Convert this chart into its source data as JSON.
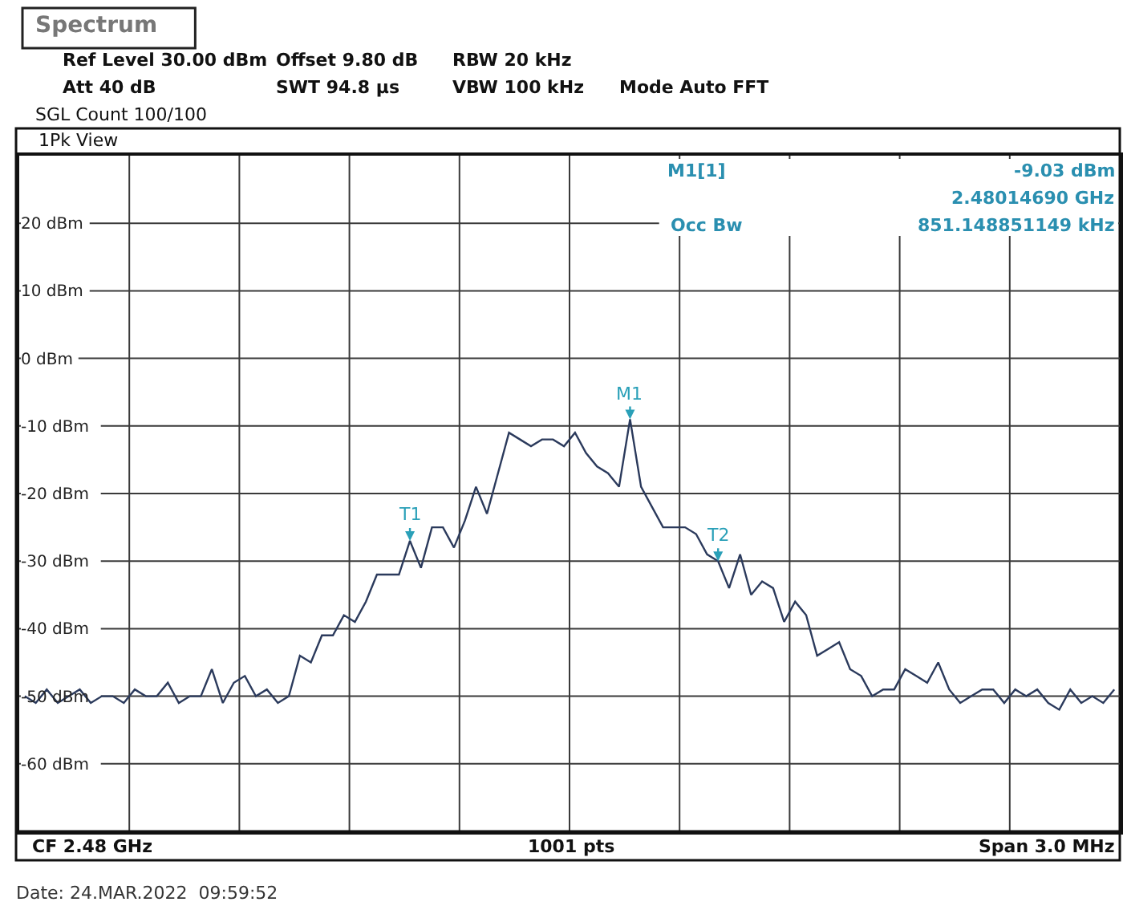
{
  "chart_data": {
    "type": "line",
    "title": "Spectrum",
    "categories": [
      null,
      null,
      null,
      null,
      null,
      null,
      null,
      null,
      null,
      null,
      null,
      null,
      null,
      null,
      null,
      null,
      null,
      null,
      null,
      null,
      null,
      null,
      null,
      null,
      null,
      null,
      null,
      null,
      null,
      null,
      null,
      null,
      null,
      null,
      null,
      null,
      null,
      null,
      null,
      null,
      null,
      null,
      null,
      null,
      null,
      null,
      null,
      null,
      null,
      null,
      null,
      null,
      null,
      null,
      null,
      null,
      null,
      null,
      null,
      null,
      null,
      null,
      null,
      null,
      null,
      null,
      null,
      null,
      null,
      null,
      null,
      null,
      null,
      null,
      null,
      null,
      null,
      null,
      null,
      null,
      null,
      null,
      null,
      null,
      null,
      null,
      null,
      null,
      null,
      null,
      null,
      null,
      null,
      null,
      null,
      null,
      null,
      null,
      null,
      null
    ],
    "series": [
      {
        "color": "#2b3a5c",
        "values": [
          -50,
          -51,
          -49,
          -51,
          -50,
          -49,
          -51,
          -50,
          -50,
          -51,
          -49,
          -50,
          -50,
          -48,
          -51,
          -50,
          -50,
          -46,
          -51,
          -48,
          -47,
          -50,
          -49,
          -51,
          -50,
          -44,
          -45,
          -41,
          -41,
          -38,
          -39,
          -36,
          -32,
          -32,
          -32,
          -27,
          -31,
          -25,
          -25,
          -28,
          -24,
          -19,
          -23,
          -17,
          -11,
          -12,
          -13,
          -12,
          -12,
          -13,
          -11,
          -14,
          -16,
          -17,
          -19,
          -9,
          -19,
          -22,
          -25,
          -25,
          -25,
          -26,
          -29,
          -30,
          -34,
          -29,
          -35,
          -33,
          -34,
          -39,
          -36,
          -38,
          -44,
          -43,
          -42,
          -46,
          -47,
          -50,
          -49,
          -49,
          -46,
          -47,
          -48,
          -45,
          -49,
          -51,
          -50,
          -49,
          -49,
          -51,
          -49,
          -50,
          -49,
          -51,
          -52,
          -49,
          -51,
          -50,
          -51,
          -49
        ]
      }
    ],
    "ylim": [
      -70,
      30
    ],
    "yticks": [
      {
        "value": 20,
        "label": "20 dBm"
      },
      {
        "value": 10,
        "label": "10 dBm"
      },
      {
        "value": 0,
        "label": "0 dBm"
      },
      {
        "value": -10,
        "label": "-10 dBm"
      },
      {
        "value": -20,
        "label": "-20 dBm"
      },
      {
        "value": -30,
        "label": "-30 dBm"
      },
      {
        "value": -40,
        "label": "-40 dBm"
      },
      {
        "value": -50,
        "label": "-50 dBm"
      },
      {
        "value": -60,
        "label": "-60 dBm"
      }
    ],
    "grid": true,
    "tick_labels": "y",
    "annotations": [
      "Ref Level 30.00 dBm",
      "Att 40 dB",
      "Offset 9.80 dB",
      "SWT 94.8 µs",
      "RBW 20 kHz",
      "VBW 100 kHz",
      "Mode Auto FFT",
      "SGL Count 100/100",
      "1Pk View",
      "M1[1]",
      "-9.03 dBm",
      "2.48014690 GHz",
      "Occ Bw",
      "851.148851149 kHz",
      "CF 2.48 GHz",
      "1001 pts",
      "Span 3.0 MHz",
      "Date: 24.MAR.2022  09:59:52",
      {
        "text": "M1",
        "y": -9
      },
      {
        "text": "T1",
        "y": -27
      },
      {
        "text": "T2",
        "y": -30
      }
    ]
  }
}
